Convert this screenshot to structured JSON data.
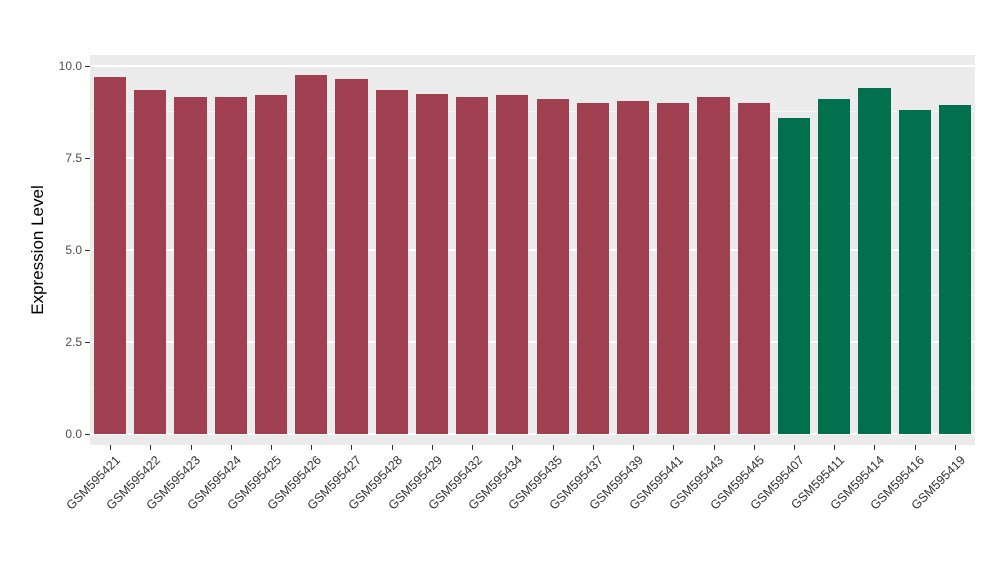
{
  "chart_data": {
    "type": "bar",
    "title": "",
    "xlabel": "",
    "ylabel": "Expression Level",
    "ylim": [
      0,
      10
    ],
    "yticks": [
      0.0,
      2.5,
      5.0,
      7.5,
      10.0
    ],
    "ytick_labels": [
      "0.0",
      "2.5",
      "5.0",
      "7.5",
      "10.0"
    ],
    "minor_yticks": [
      1.25,
      3.75,
      6.25,
      8.75
    ],
    "grid": true,
    "legend_position": "none",
    "panel_background": "#EBEBEB",
    "grid_color": "#FFFFFF",
    "categories": [
      "GSM595421",
      "GSM595422",
      "GSM595423",
      "GSM595424",
      "GSM595425",
      "GSM595426",
      "GSM595427",
      "GSM595428",
      "GSM595429",
      "GSM595432",
      "GSM595434",
      "GSM595435",
      "GSM595437",
      "GSM595439",
      "GSM595441",
      "GSM595443",
      "GSM595445",
      "GSM595407",
      "GSM595411",
      "GSM595414",
      "GSM595416",
      "GSM595419"
    ],
    "values": [
      9.7,
      9.35,
      9.15,
      9.15,
      9.2,
      9.75,
      9.65,
      9.35,
      9.25,
      9.15,
      9.2,
      9.1,
      9.0,
      9.05,
      9.0,
      9.15,
      9.0,
      8.6,
      9.1,
      9.4,
      8.8,
      8.95
    ],
    "groups": [
      "group1",
      "group1",
      "group1",
      "group1",
      "group1",
      "group1",
      "group1",
      "group1",
      "group1",
      "group1",
      "group1",
      "group1",
      "group1",
      "group1",
      "group1",
      "group1",
      "group1",
      "group2",
      "group2",
      "group2",
      "group2",
      "group2"
    ],
    "group_colors": {
      "group1": "#A03F50",
      "group2": "#00714C"
    }
  }
}
